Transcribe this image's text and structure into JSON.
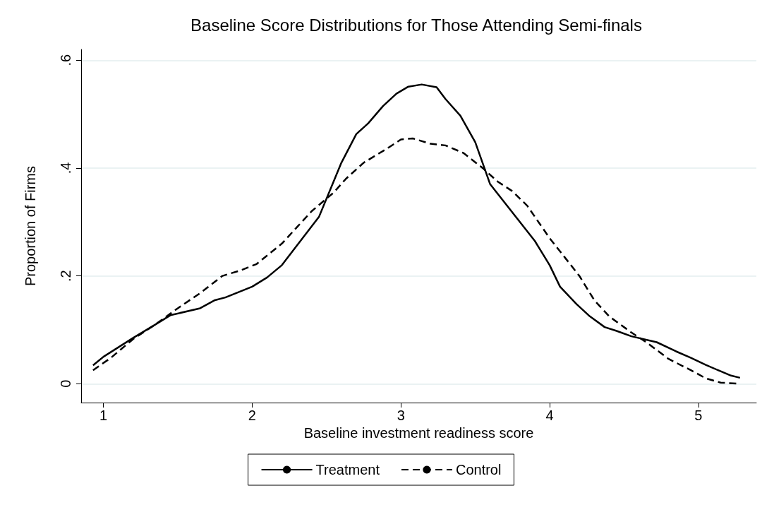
{
  "chart_data": {
    "type": "line",
    "title": "Baseline Score Distributions for Those Attending Semi-finals",
    "xlabel": "Baseline investment readiness score",
    "ylabel": "Proportion of Firms",
    "xlim": [
      0.85,
      5.39
    ],
    "xticks": [
      1,
      2,
      3,
      4,
      5
    ],
    "ylim": [
      -0.035,
      0.62
    ],
    "yticks": [
      {
        "value": 0,
        "label": "0"
      },
      {
        "value": 0.2,
        "label": ".2"
      },
      {
        "value": 0.4,
        "label": ".4"
      },
      {
        "value": 0.6,
        "label": ".6"
      }
    ],
    "grid": "y",
    "legend": "bottom",
    "marker": "none",
    "series": [
      {
        "name": "Treatment",
        "color": "#000000",
        "line_style": "solid",
        "x": [
          0.93,
          1.0,
          1.2,
          1.35,
          1.45,
          1.65,
          1.75,
          1.82,
          2.0,
          2.1,
          2.2,
          2.45,
          2.6,
          2.7,
          2.78,
          2.88,
          2.97,
          3.05,
          3.14,
          3.24,
          3.3,
          3.4,
          3.5,
          3.6,
          3.7,
          3.8,
          3.9,
          4.0,
          4.07,
          4.18,
          4.27,
          4.37,
          4.45,
          4.55,
          4.72,
          4.85,
          4.95,
          5.05,
          5.15,
          5.22,
          5.28
        ],
        "values": [
          0.034,
          0.05,
          0.085,
          0.11,
          0.127,
          0.14,
          0.155,
          0.16,
          0.18,
          0.197,
          0.22,
          0.31,
          0.41,
          0.463,
          0.483,
          0.515,
          0.538,
          0.551,
          0.555,
          0.55,
          0.528,
          0.497,
          0.448,
          0.37,
          0.335,
          0.3,
          0.265,
          0.22,
          0.18,
          0.148,
          0.125,
          0.105,
          0.098,
          0.088,
          0.077,
          0.06,
          0.048,
          0.035,
          0.023,
          0.015,
          0.011
        ]
      },
      {
        "name": "Control",
        "color": "#000000",
        "line_style": "dashed",
        "x": [
          0.93,
          1.05,
          1.2,
          1.35,
          1.5,
          1.65,
          1.8,
          1.92,
          2.03,
          2.2,
          2.3,
          2.4,
          2.55,
          2.63,
          2.75,
          2.9,
          3.0,
          3.08,
          3.2,
          3.3,
          3.42,
          3.55,
          3.65,
          3.75,
          3.85,
          4.0,
          4.1,
          4.2,
          4.3,
          4.4,
          4.55,
          4.65,
          4.8,
          4.95,
          5.05,
          5.15,
          5.27
        ],
        "values": [
          0.025,
          0.048,
          0.083,
          0.11,
          0.14,
          0.168,
          0.2,
          0.21,
          0.222,
          0.26,
          0.29,
          0.32,
          0.355,
          0.38,
          0.41,
          0.435,
          0.453,
          0.455,
          0.445,
          0.442,
          0.428,
          0.4,
          0.375,
          0.357,
          0.33,
          0.27,
          0.235,
          0.2,
          0.155,
          0.125,
          0.095,
          0.077,
          0.046,
          0.025,
          0.01,
          0.002,
          0.0
        ]
      }
    ]
  }
}
